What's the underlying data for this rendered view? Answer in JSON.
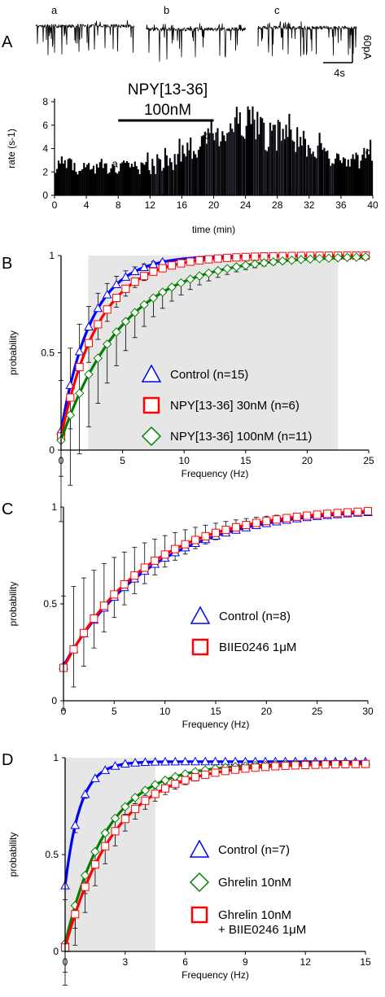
{
  "panels": {
    "A": {
      "letter": "A"
    },
    "B": {
      "letter": "B"
    },
    "C": {
      "letter": "C"
    },
    "D": {
      "letter": "D"
    }
  },
  "traces": {
    "labels": [
      "a",
      "b",
      "c"
    ],
    "scale_current": "60pA",
    "scale_time": "4s"
  },
  "drug_bar": {
    "title": "NPY[13-36]",
    "conc": "100nM"
  },
  "chart_data": [
    {
      "id": "A",
      "type": "bar",
      "xlabel": "time (min)",
      "ylabel": "rate (s-1)",
      "xlim": [
        0,
        40
      ],
      "ylim": [
        0,
        8
      ],
      "xticks": [
        0,
        4,
        8,
        12,
        16,
        20,
        24,
        28,
        32,
        36,
        40
      ],
      "yticks": [
        0,
        2,
        4,
        6,
        8
      ],
      "bar_width_min": 0.2,
      "drug_application_min": [
        8,
        20
      ],
      "grey_segment_min": [
        12,
        35
      ],
      "point_labels": [
        {
          "text": "a",
          "x": 7.6,
          "y": 2.2
        },
        {
          "text": "b",
          "x": 19.2,
          "y": 4.6
        },
        {
          "text": "c",
          "x": 39.4,
          "y": 3.2
        }
      ],
      "envelope": [
        [
          0,
          2.6
        ],
        [
          1,
          2.9
        ],
        [
          2,
          2.5
        ],
        [
          3,
          2.5
        ],
        [
          4,
          2.3
        ],
        [
          5,
          2.3
        ],
        [
          6,
          2.2
        ],
        [
          7,
          2.2
        ],
        [
          8,
          2.3
        ],
        [
          9,
          2.4
        ],
        [
          10,
          2.6
        ],
        [
          11,
          2.5
        ],
        [
          12,
          2.5
        ],
        [
          13,
          2.6
        ],
        [
          14,
          2.8
        ],
        [
          15,
          3.0
        ],
        [
          16,
          3.4
        ],
        [
          17,
          3.9
        ],
        [
          18,
          4.3
        ],
        [
          19,
          4.6
        ],
        [
          20,
          4.8
        ],
        [
          21,
          5.1
        ],
        [
          22,
          5.8
        ],
        [
          23,
          6.1
        ],
        [
          24,
          6.3
        ],
        [
          25,
          6.0
        ],
        [
          26,
          5.6
        ],
        [
          27,
          5.1
        ],
        [
          28,
          5.4
        ],
        [
          29,
          5.0
        ],
        [
          30,
          4.9
        ],
        [
          31,
          4.6
        ],
        [
          32,
          4.2
        ],
        [
          33,
          3.9
        ],
        [
          34,
          3.7
        ],
        [
          35,
          3.4
        ],
        [
          36,
          3.0
        ],
        [
          37,
          2.9
        ],
        [
          38,
          3.0
        ],
        [
          39,
          3.3
        ],
        [
          40,
          3.3
        ]
      ]
    },
    {
      "id": "B",
      "type": "line",
      "xlabel": "Frequency (Hz)",
      "ylabel": "probability",
      "xlim": [
        0,
        25
      ],
      "ylim": [
        0,
        1
      ],
      "xticks": [
        0,
        5,
        10,
        15,
        20,
        25
      ],
      "yticks": [
        0,
        0.5,
        1
      ],
      "ytick_labels": [
        "0",
        "0.5",
        "1"
      ],
      "shade_x": [
        2.2,
        22.5
      ],
      "x": [
        0,
        0.75,
        1.5,
        2.25,
        3,
        3.75,
        4.5,
        5.25,
        6,
        6.75,
        7.5,
        8.25,
        9,
        9.75,
        10.5,
        11.25,
        12,
        12.75,
        13.5,
        14.25,
        15,
        15.75,
        16.5,
        17.25,
        18,
        18.75,
        19.5,
        20.25,
        21,
        21.75,
        22.5,
        23.25,
        24,
        24.75
      ],
      "series": [
        {
          "name": "Control (n=15)",
          "color": "#0000ff",
          "marker": "triangle",
          "tau": 2.5,
          "y0": 0.1,
          "points_until": 8.5,
          "err": 0.13
        },
        {
          "name": "NPY[13-36] 30nM (n=6)",
          "color": "#ff0000",
          "marker": "square",
          "tau": 3.1,
          "y0": 0.07,
          "err": 0.1
        },
        {
          "name": "NPY[13-36] 100nM (n=11)",
          "color": "#008000",
          "marker": "diamond",
          "tau": 5.1,
          "y0": 0.05,
          "err": 0.2
        }
      ]
    },
    {
      "id": "C",
      "type": "line",
      "xlabel": "Frequency (Hz)",
      "ylabel": "probability",
      "xlim": [
        0,
        30
      ],
      "ylim": [
        0,
        1
      ],
      "xticks": [
        0,
        5,
        10,
        15,
        20,
        25,
        30
      ],
      "yticks": [
        0,
        0.5,
        1
      ],
      "ytick_labels": [
        "0",
        "0.5",
        "1"
      ],
      "x": [
        0,
        1,
        2,
        3,
        4,
        5,
        6,
        7,
        8,
        9,
        10,
        11,
        12,
        13,
        14,
        15,
        16,
        17,
        18,
        19,
        20,
        21,
        22,
        23,
        24,
        25,
        26,
        27,
        28,
        29,
        30
      ],
      "series": [
        {
          "name": "Control (n=8)",
          "color": "#0000ff",
          "marker": "triangle",
          "tau": 8.8,
          "y0": 0.18,
          "err": 0.2
        },
        {
          "name": "BIIE0246 1μM",
          "color": "#ff0000",
          "marker": "square",
          "tau": 8.2,
          "y0": 0.17,
          "err": 0.12
        }
      ]
    },
    {
      "id": "D",
      "type": "line",
      "xlabel": "Frequency (Hz)",
      "ylabel": "probability",
      "xlim": [
        0,
        15
      ],
      "ylim": [
        0,
        1
      ],
      "xticks": [
        0,
        3,
        6,
        9,
        12,
        15
      ],
      "yticks": [
        0,
        0.5,
        1
      ],
      "ytick_labels": [
        "0",
        "0.5",
        "1"
      ],
      "shade_x": [
        0,
        4.5
      ],
      "x": [
        0,
        0.5,
        1,
        1.5,
        2,
        2.5,
        3,
        3.5,
        4,
        4.5,
        5,
        5.5,
        6,
        6.5,
        7,
        7.5,
        8,
        8.5,
        9,
        9.5,
        10,
        10.5,
        11,
        11.5,
        12,
        12.5,
        13,
        13.5,
        14,
        14.5,
        15
      ],
      "series": [
        {
          "name": "Control (n=7)",
          "color": "#0000ff",
          "marker": "triangle",
          "tau": 0.75,
          "y0": 0.34,
          "ymax": 0.98,
          "err": 0.05
        },
        {
          "name": "Ghrelin 10nM",
          "color": "#008000",
          "marker": "diamond",
          "tau": 2.1,
          "y0": 0.04,
          "ymax": 0.97,
          "err": 0.07
        },
        {
          "name": "Ghrelin 10nM\n+ BIIE0246 1μM",
          "color": "#ff0000",
          "marker": "square",
          "tau": 2.5,
          "y0": 0.02,
          "ymax": 0.97,
          "err": 0.09
        }
      ]
    }
  ]
}
